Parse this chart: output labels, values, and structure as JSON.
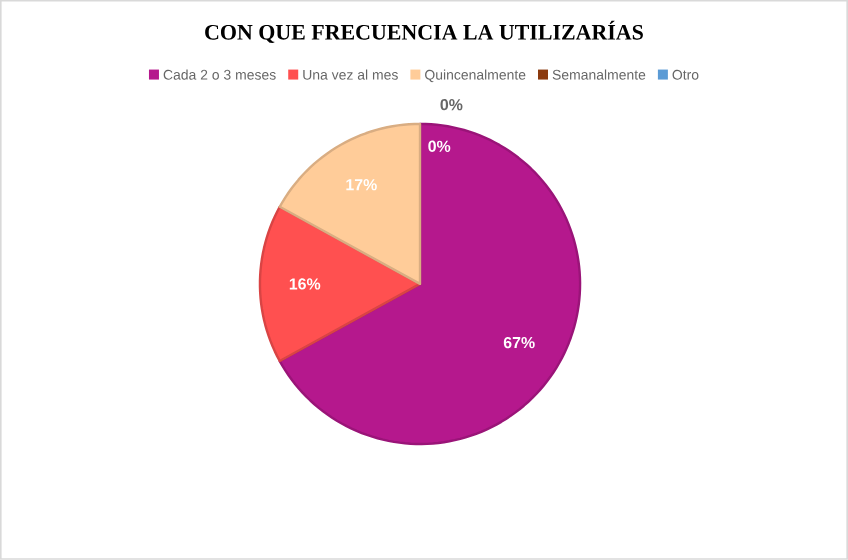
{
  "chart_data": {
    "type": "pie",
    "title": "CON QUE FRECUENCIA LA UTILIZARÍAS",
    "categories": [
      "Cada 2 o 3 meses",
      "Una vez al mes",
      "Quincenalmente",
      "Semanalmente",
      "Otro"
    ],
    "values": [
      67,
      16,
      17,
      0,
      0
    ],
    "value_labels": [
      "67%",
      "16%",
      "17%",
      "0%",
      "0%"
    ],
    "colors": [
      "#b5188d",
      "#ff5050",
      "#ffcc99",
      "#8b3a0e",
      "#5b9bd5"
    ],
    "legend": "top"
  }
}
